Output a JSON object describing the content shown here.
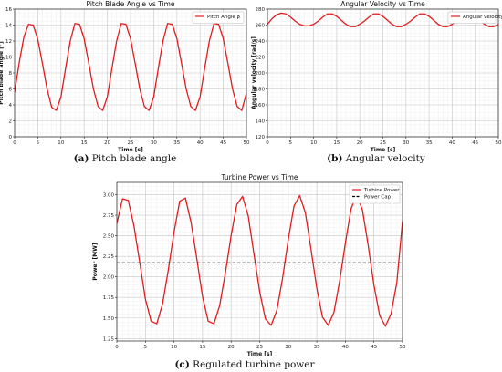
{
  "figure": {
    "captions": [
      {
        "label": "(a)",
        "text": "Pitch blade angle"
      },
      {
        "label": "(b)",
        "text": "Angular velocity"
      },
      {
        "label": "(c)",
        "text": "Regulated turbine power"
      }
    ]
  },
  "chart_data": [
    {
      "type": "line",
      "title": "Pitch Blade Angle vs Time",
      "xlabel": "Time [s]",
      "ylabel": "Pitch blade angle [°]",
      "xlim": [
        0,
        50
      ],
      "ylim": [
        0,
        16
      ],
      "xticks": [
        0,
        5,
        10,
        15,
        20,
        25,
        30,
        35,
        40,
        45,
        50
      ],
      "yticks": [
        0,
        2,
        4,
        6,
        8,
        10,
        12,
        14,
        16
      ],
      "grid": true,
      "legend_position": "top-right",
      "color": "#e41a1c",
      "series": [
        {
          "name": "Pitch Angle β",
          "x": [
            0,
            1,
            2,
            3,
            4,
            5,
            6,
            7,
            8,
            9,
            10,
            11,
            12,
            13,
            14,
            15,
            16,
            17,
            18,
            19,
            20,
            21,
            22,
            23,
            24,
            25,
            26,
            27,
            28,
            29,
            30,
            31,
            32,
            33,
            34,
            35,
            36,
            37,
            38,
            39,
            40,
            41,
            42,
            43,
            44,
            45,
            46,
            47,
            48,
            49,
            50
          ],
          "y": [
            5.6,
            9.3,
            12.5,
            14.1,
            14.0,
            12.2,
            9.2,
            6.0,
            3.7,
            3.3,
            5.0,
            8.6,
            12.0,
            14.2,
            14.1,
            12.3,
            9.2,
            6.0,
            3.8,
            3.3,
            5.0,
            8.6,
            12.0,
            14.2,
            14.1,
            12.3,
            9.2,
            6.0,
            3.8,
            3.3,
            5.0,
            8.6,
            12.0,
            14.2,
            14.1,
            12.3,
            9.2,
            6.0,
            3.8,
            3.3,
            5.0,
            8.6,
            12.0,
            14.2,
            14.1,
            12.3,
            9.2,
            6.0,
            3.8,
            3.3,
            5.5
          ]
        }
      ]
    },
    {
      "type": "line",
      "title": "Angular Velocity vs Time",
      "xlabel": "Time [s]",
      "ylabel": "Angular velocity [rad/s]",
      "xlim": [
        0,
        50
      ],
      "ylim": [
        120,
        280
      ],
      "xticks": [
        0,
        5,
        10,
        15,
        20,
        25,
        30,
        35,
        40,
        45,
        50
      ],
      "yticks": [
        120,
        140,
        160,
        180,
        200,
        220,
        240,
        260,
        280
      ],
      "grid": true,
      "legend_position": "top-right",
      "color": "#e41a1c",
      "series": [
        {
          "name": "Angular velocity",
          "x": [
            0,
            1,
            2,
            3,
            4,
            5,
            6,
            7,
            8,
            9,
            10,
            11,
            12,
            13,
            14,
            15,
            16,
            17,
            18,
            19,
            20,
            21,
            22,
            23,
            24,
            25,
            26,
            27,
            28,
            29,
            30,
            31,
            32,
            33,
            34,
            35,
            36,
            37,
            38,
            39,
            40,
            41,
            42,
            43,
            44,
            45,
            46,
            47,
            48,
            49,
            50
          ],
          "y": [
            261,
            268,
            273,
            275,
            274,
            270,
            265,
            261,
            259,
            259,
            261,
            265,
            270,
            274,
            274,
            271,
            266,
            261,
            258,
            258,
            261,
            265,
            270,
            274,
            274,
            271,
            266,
            261,
            258,
            258,
            261,
            265,
            270,
            274,
            274,
            271,
            266,
            261,
            258,
            258,
            261,
            265,
            270,
            274,
            274,
            271,
            266,
            261,
            258,
            258,
            261
          ]
        }
      ]
    },
    {
      "type": "line",
      "title": "Turbine Power vs Time",
      "xlabel": "Time [s]",
      "ylabel": "Power [MW]",
      "xlim": [
        0,
        50
      ],
      "ylim": [
        1.22,
        3.15
      ],
      "xticks": [
        0,
        5,
        10,
        15,
        20,
        25,
        30,
        35,
        40,
        45,
        50
      ],
      "yticks": [
        1.25,
        1.5,
        1.75,
        2.0,
        2.25,
        2.5,
        2.75,
        3.0
      ],
      "ytick_labels": [
        "1.25",
        "1.50",
        "1.75",
        "2.00",
        "2.25",
        "2.50",
        "2.75",
        "3.00"
      ],
      "grid": true,
      "legend_position": "top-right",
      "series": [
        {
          "name": "Turbine Power",
          "color": "#e41a1c",
          "style": "solid",
          "x": [
            0,
            1,
            2,
            3,
            4,
            5,
            6,
            7,
            8,
            9,
            10,
            11,
            12,
            13,
            14,
            15,
            16,
            17,
            18,
            19,
            20,
            21,
            22,
            23,
            24,
            25,
            26,
            27,
            28,
            29,
            30,
            31,
            32,
            33,
            34,
            35,
            36,
            37,
            38,
            39,
            40,
            41,
            42,
            43,
            44,
            45,
            46,
            47,
            48,
            49,
            50
          ],
          "y": [
            2.65,
            2.95,
            2.93,
            2.62,
            2.18,
            1.73,
            1.46,
            1.43,
            1.67,
            2.08,
            2.54,
            2.92,
            2.96,
            2.66,
            2.22,
            1.76,
            1.46,
            1.43,
            1.65,
            2.05,
            2.5,
            2.88,
            2.98,
            2.74,
            2.28,
            1.82,
            1.49,
            1.41,
            1.59,
            1.98,
            2.45,
            2.86,
            2.99,
            2.78,
            2.33,
            1.86,
            1.51,
            1.41,
            1.57,
            1.95,
            2.41,
            2.83,
            3.0,
            2.81,
            2.38,
            1.9,
            1.53,
            1.4,
            1.55,
            1.93,
            2.68
          ]
        },
        {
          "name": "Power Cap",
          "color": "#000000",
          "style": "dashed",
          "x": [
            0,
            50
          ],
          "y": [
            2.17,
            2.17
          ]
        }
      ]
    }
  ]
}
